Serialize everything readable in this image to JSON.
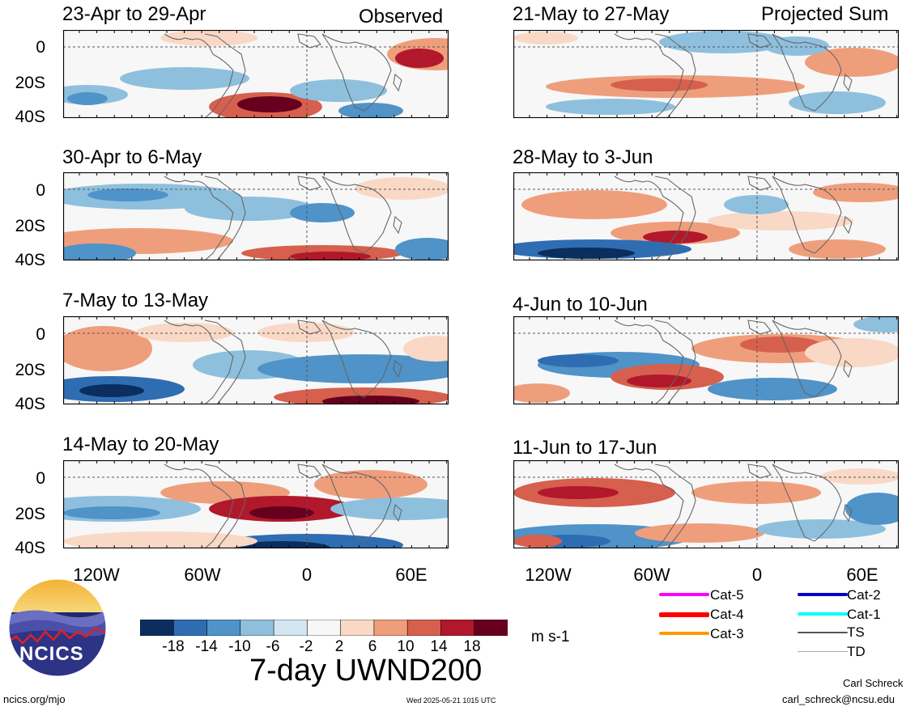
{
  "colors": {
    "scale": [
      "#0b2e5e",
      "#2f6db3",
      "#4f93c8",
      "#8ec0de",
      "#d2e6f1",
      "#f7f7f7",
      "#f9d9c6",
      "#ef9e7c",
      "#d6604d",
      "#b2182b",
      "#67001f"
    ],
    "equator_line": "#555555",
    "coast": "#666666"
  },
  "left_column": {
    "label": "Observed",
    "panels": [
      {
        "period": "23-Apr to 29-Apr"
      },
      {
        "period": "30-Apr to 6-May"
      },
      {
        "period": "7-May to 13-May"
      },
      {
        "period": "14-May to 20-May"
      }
    ]
  },
  "right_column": {
    "label": "Projected Sum",
    "panels": [
      {
        "period": "21-May to 27-May"
      },
      {
        "period": "28-May to 3-Jun"
      },
      {
        "period": "4-Jun to 10-Jun"
      },
      {
        "period": "11-Jun to 17-Jun"
      }
    ]
  },
  "axes": {
    "y_ticks": [
      "0",
      "20S",
      "40S"
    ],
    "x_ticks": [
      "120W",
      "60W",
      "0",
      "60E"
    ]
  },
  "colorbar": {
    "labels": [
      "-18",
      "-14",
      "-10",
      "-6",
      "-2",
      "2",
      "6",
      "10",
      "14",
      "18"
    ],
    "units": "m s-1"
  },
  "title": "7-day UWND200",
  "legend": {
    "items": [
      {
        "label": "Cat-5",
        "color": "#ff00ff"
      },
      {
        "label": "Cat-4",
        "color": "#ff0000"
      },
      {
        "label": "Cat-3",
        "color": "#ff9900"
      },
      {
        "label": "Cat-2",
        "color": "#0000cc"
      },
      {
        "label": "Cat-1",
        "color": "#00ffff"
      },
      {
        "label": "TS",
        "color": "#555555"
      },
      {
        "label": "TD",
        "color": "#aaaaaa"
      }
    ]
  },
  "logo": {
    "text": "NCICS"
  },
  "footer": {
    "left": "ncics.org/mjo",
    "center": "Wed 2025-05-21 1015 UTC",
    "author": "Carl Schreck",
    "email": "carl_schreck@ncsu.edu"
  }
}
